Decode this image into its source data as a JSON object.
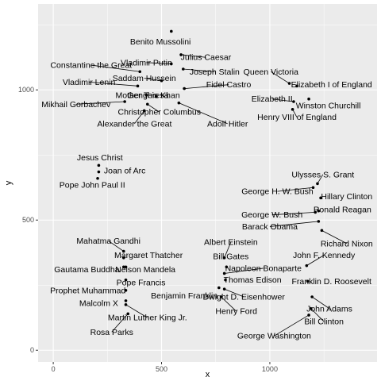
{
  "chart_data": {
    "type": "scatter",
    "xlabel": "x",
    "ylabel": "y",
    "xlim": [
      -70,
      1495
    ],
    "ylim": [
      -45,
      1330
    ],
    "x_ticks": [
      0,
      500,
      1000
    ],
    "y_ticks": [
      0,
      500,
      1000
    ],
    "grid": true,
    "panel_background": "#ebebeb",
    "point_color": "#000000",
    "points": [
      {
        "name": "Benito Mussolini",
        "x": 545,
        "y": 1225
      },
      {
        "name": "Julius Caesar",
        "x": 590,
        "y": 1135
      },
      {
        "name": "Vladimir Putin",
        "x": 545,
        "y": 1100
      },
      {
        "name": "Constantine the Great",
        "x": 400,
        "y": 1070
      },
      {
        "name": "Joseph Stalin",
        "x": 600,
        "y": 1080
      },
      {
        "name": "Saddam Hussein",
        "x": 500,
        "y": 1035
      },
      {
        "name": "Vladimir Lenin",
        "x": 390,
        "y": 1015
      },
      {
        "name": "Fidel Castro",
        "x": 605,
        "y": 1005
      },
      {
        "name": "Mother Teresa",
        "x": 430,
        "y": 980
      },
      {
        "name": "Genghis Khan",
        "x": 475,
        "y": 975
      },
      {
        "name": "Mikhail Gorbachev",
        "x": 330,
        "y": 955
      },
      {
        "name": "Christopher Columbus",
        "x": 435,
        "y": 945
      },
      {
        "name": "Alexander the Great",
        "x": 420,
        "y": 920
      },
      {
        "name": "Adolf Hitler",
        "x": 580,
        "y": 950
      },
      {
        "name": "Queen Victoria",
        "x": 1090,
        "y": 1025
      },
      {
        "name": "Elizabeth I of England",
        "x": 1125,
        "y": 1015
      },
      {
        "name": "Elizabeth II",
        "x": 1110,
        "y": 955
      },
      {
        "name": "Winston Churchill",
        "x": 1180,
        "y": 965
      },
      {
        "name": "Henry VIII of England",
        "x": 1105,
        "y": 925
      },
      {
        "name": "Jesus Christ",
        "x": 210,
        "y": 710
      },
      {
        "name": "Joan of Arc",
        "x": 210,
        "y": 685
      },
      {
        "name": "Pope John Paul II",
        "x": 205,
        "y": 660
      },
      {
        "name": "Ulysses S. Grant",
        "x": 1220,
        "y": 640
      },
      {
        "name": "George H. W. Bush",
        "x": 1200,
        "y": 625
      },
      {
        "name": "Hillary Clinton",
        "x": 1235,
        "y": 585
      },
      {
        "name": "George W. Bush",
        "x": 1210,
        "y": 530
      },
      {
        "name": "Ronald Reagan",
        "x": 1225,
        "y": 535
      },
      {
        "name": "Barack Obama",
        "x": 1225,
        "y": 495
      },
      {
        "name": "Richard Nixon",
        "x": 1240,
        "y": 460
      },
      {
        "name": "Mahatma Gandhi",
        "x": 325,
        "y": 380
      },
      {
        "name": "Margaret Thatcher",
        "x": 325,
        "y": 355
      },
      {
        "name": "Gautama Buddha",
        "x": 325,
        "y": 320
      },
      {
        "name": "Nelson Mandela",
        "x": 335,
        "y": 320
      },
      {
        "name": "Pope Francis",
        "x": 335,
        "y": 270
      },
      {
        "name": "Prophet Muhammad",
        "x": 335,
        "y": 230
      },
      {
        "name": "Malcolm X",
        "x": 335,
        "y": 190
      },
      {
        "name": "Martin Luther King Jr.",
        "x": 335,
        "y": 175
      },
      {
        "name": "Rosa Parks",
        "x": 345,
        "y": 140
      },
      {
        "name": "Albert Einstein",
        "x": 790,
        "y": 355
      },
      {
        "name": "Bill Gates",
        "x": 800,
        "y": 320
      },
      {
        "name": "Napoleon Bonaparte",
        "x": 790,
        "y": 295
      },
      {
        "name": "Thomas Edison",
        "x": 795,
        "y": 270
      },
      {
        "name": "Benjamin Franklin",
        "x": 765,
        "y": 240
      },
      {
        "name": "Dwight D. Eisenhower",
        "x": 790,
        "y": 235
      },
      {
        "name": "Henry Ford",
        "x": 775,
        "y": 205
      },
      {
        "name": "John F. Kennedy",
        "x": 1170,
        "y": 325
      },
      {
        "name": "Franklin D. Roosevelt",
        "x": 1175,
        "y": 265
      },
      {
        "name": "John Adams",
        "x": 1195,
        "y": 205
      },
      {
        "name": "Bill Clinton",
        "x": 1190,
        "y": 160
      },
      {
        "name": "George Washington",
        "x": 1180,
        "y": 135
      }
    ],
    "labels": [
      {
        "name": "Benito Mussolini",
        "lx": 495,
        "ly": 1185,
        "anchor": "middle",
        "line": false
      },
      {
        "name": "Julius Caesar",
        "lx": 705,
        "ly": 1125,
        "anchor": "middle",
        "line": true
      },
      {
        "name": "Vladimir Putin",
        "lx": 430,
        "ly": 1105,
        "anchor": "middle",
        "line": true
      },
      {
        "name": "Constantine the Great",
        "lx": 175,
        "ly": 1095,
        "anchor": "middle",
        "line": true
      },
      {
        "name": "Joseph Stalin",
        "lx": 745,
        "ly": 1070,
        "anchor": "middle",
        "line": true
      },
      {
        "name": "Saddam Hussein",
        "lx": 420,
        "ly": 1045,
        "anchor": "middle",
        "line": true
      },
      {
        "name": "Vladimir Lenin",
        "lx": 165,
        "ly": 1030,
        "anchor": "middle",
        "line": true
      },
      {
        "name": "Fidel Castro",
        "lx": 810,
        "ly": 1020,
        "anchor": "middle",
        "line": true
      },
      {
        "name": "Mother Teresa",
        "lx": 410,
        "ly": 980,
        "anchor": "middle",
        "line": false
      },
      {
        "name": "Genghis Khan",
        "lx": 585,
        "ly": 980,
        "anchor": "end",
        "line": false
      },
      {
        "name": "Mikhail Gorbachev",
        "lx": 105,
        "ly": 945,
        "anchor": "middle",
        "line": true
      },
      {
        "name": "Christopher Columbus",
        "lx": 490,
        "ly": 915,
        "anchor": "middle",
        "line": true
      },
      {
        "name": "Alexander the Great",
        "lx": 375,
        "ly": 870,
        "anchor": "middle",
        "line": true
      },
      {
        "name": "Adolf Hitler",
        "lx": 805,
        "ly": 870,
        "anchor": "middle",
        "line": true
      },
      {
        "name": "Queen Victoria",
        "lx": 1005,
        "ly": 1070,
        "anchor": "middle",
        "line": true
      },
      {
        "name": "Elizabeth I of England",
        "lx": 1285,
        "ly": 1020,
        "anchor": "middle",
        "line": false
      },
      {
        "name": "Elizabeth II",
        "lx": 1010,
        "ly": 965,
        "anchor": "middle",
        "line": true
      },
      {
        "name": "Winston Churchill",
        "lx": 1270,
        "ly": 940,
        "anchor": "middle",
        "line": false
      },
      {
        "name": "Henry VIII of England",
        "lx": 1125,
        "ly": 895,
        "anchor": "middle",
        "line": true
      },
      {
        "name": "Jesus Christ",
        "lx": 215,
        "ly": 740,
        "anchor": "middle",
        "line": false
      },
      {
        "name": "Joan of Arc",
        "lx": 330,
        "ly": 690,
        "anchor": "middle",
        "line": false
      },
      {
        "name": "Pope John Paul II",
        "lx": 180,
        "ly": 635,
        "anchor": "middle",
        "line": false
      },
      {
        "name": "Ulysses S. Grant",
        "lx": 1245,
        "ly": 675,
        "anchor": "middle",
        "line": true
      },
      {
        "name": "George H. W. Bush",
        "lx": 1035,
        "ly": 610,
        "anchor": "middle",
        "line": true
      },
      {
        "name": "Hillary Clinton",
        "lx": 1355,
        "ly": 590,
        "anchor": "middle",
        "line": false
      },
      {
        "name": "George W. Bush",
        "lx": 1010,
        "ly": 520,
        "anchor": "middle",
        "line": true
      },
      {
        "name": "Ronald Reagan",
        "lx": 1335,
        "ly": 540,
        "anchor": "middle",
        "line": false
      },
      {
        "name": "Barack Obama",
        "lx": 1000,
        "ly": 475,
        "anchor": "middle",
        "line": true
      },
      {
        "name": "Richard Nixon",
        "lx": 1355,
        "ly": 410,
        "anchor": "middle",
        "line": true
      },
      {
        "name": "Mahatma Gandhi",
        "lx": 255,
        "ly": 420,
        "anchor": "middle",
        "line": true
      },
      {
        "name": "Margaret Thatcher",
        "lx": 440,
        "ly": 365,
        "anchor": "middle",
        "line": false
      },
      {
        "name": "Gautama Buddha",
        "lx": 155,
        "ly": 310,
        "anchor": "middle",
        "line": false
      },
      {
        "name": "Nelson Mandela",
        "lx": 425,
        "ly": 310,
        "anchor": "middle",
        "line": false
      },
      {
        "name": "Pope Francis",
        "lx": 405,
        "ly": 260,
        "anchor": "middle",
        "line": false
      },
      {
        "name": "Prophet Muhammad",
        "lx": 160,
        "ly": 230,
        "anchor": "middle",
        "line": false
      },
      {
        "name": "Malcolm X",
        "lx": 210,
        "ly": 180,
        "anchor": "middle",
        "line": false
      },
      {
        "name": "Martin Luther King Jr.",
        "lx": 435,
        "ly": 125,
        "anchor": "middle",
        "line": true
      },
      {
        "name": "Rosa Parks",
        "lx": 270,
        "ly": 70,
        "anchor": "middle",
        "line": true
      },
      {
        "name": "Albert Einstein",
        "lx": 820,
        "ly": 415,
        "anchor": "middle",
        "line": true
      },
      {
        "name": "Bill Gates",
        "lx": 820,
        "ly": 360,
        "anchor": "middle",
        "line": false
      },
      {
        "name": "Napoleon Bonaparte",
        "lx": 970,
        "ly": 315,
        "anchor": "middle",
        "line": true
      },
      {
        "name": "Thomas Edison",
        "lx": 920,
        "ly": 270,
        "anchor": "middle",
        "line": false
      },
      {
        "name": "Benjamin Franklin",
        "lx": 605,
        "ly": 210,
        "anchor": "middle",
        "line": false
      },
      {
        "name": "Dwight D. Eisenhower",
        "lx": 880,
        "ly": 205,
        "anchor": "middle",
        "line": true
      },
      {
        "name": "Henry Ford",
        "lx": 845,
        "ly": 150,
        "anchor": "middle",
        "line": true
      },
      {
        "name": "John F. Kennedy",
        "lx": 1250,
        "ly": 365,
        "anchor": "middle",
        "line": true
      },
      {
        "name": "Franklin D. Roosevelt",
        "lx": 1285,
        "ly": 265,
        "anchor": "middle",
        "line": false
      },
      {
        "name": "John Adams",
        "lx": 1275,
        "ly": 160,
        "anchor": "middle",
        "line": true
      },
      {
        "name": "Bill Clinton",
        "lx": 1250,
        "ly": 110,
        "anchor": "middle",
        "line": true
      },
      {
        "name": "George Washington",
        "lx": 1020,
        "ly": 55,
        "anchor": "middle",
        "line": true
      }
    ]
  }
}
